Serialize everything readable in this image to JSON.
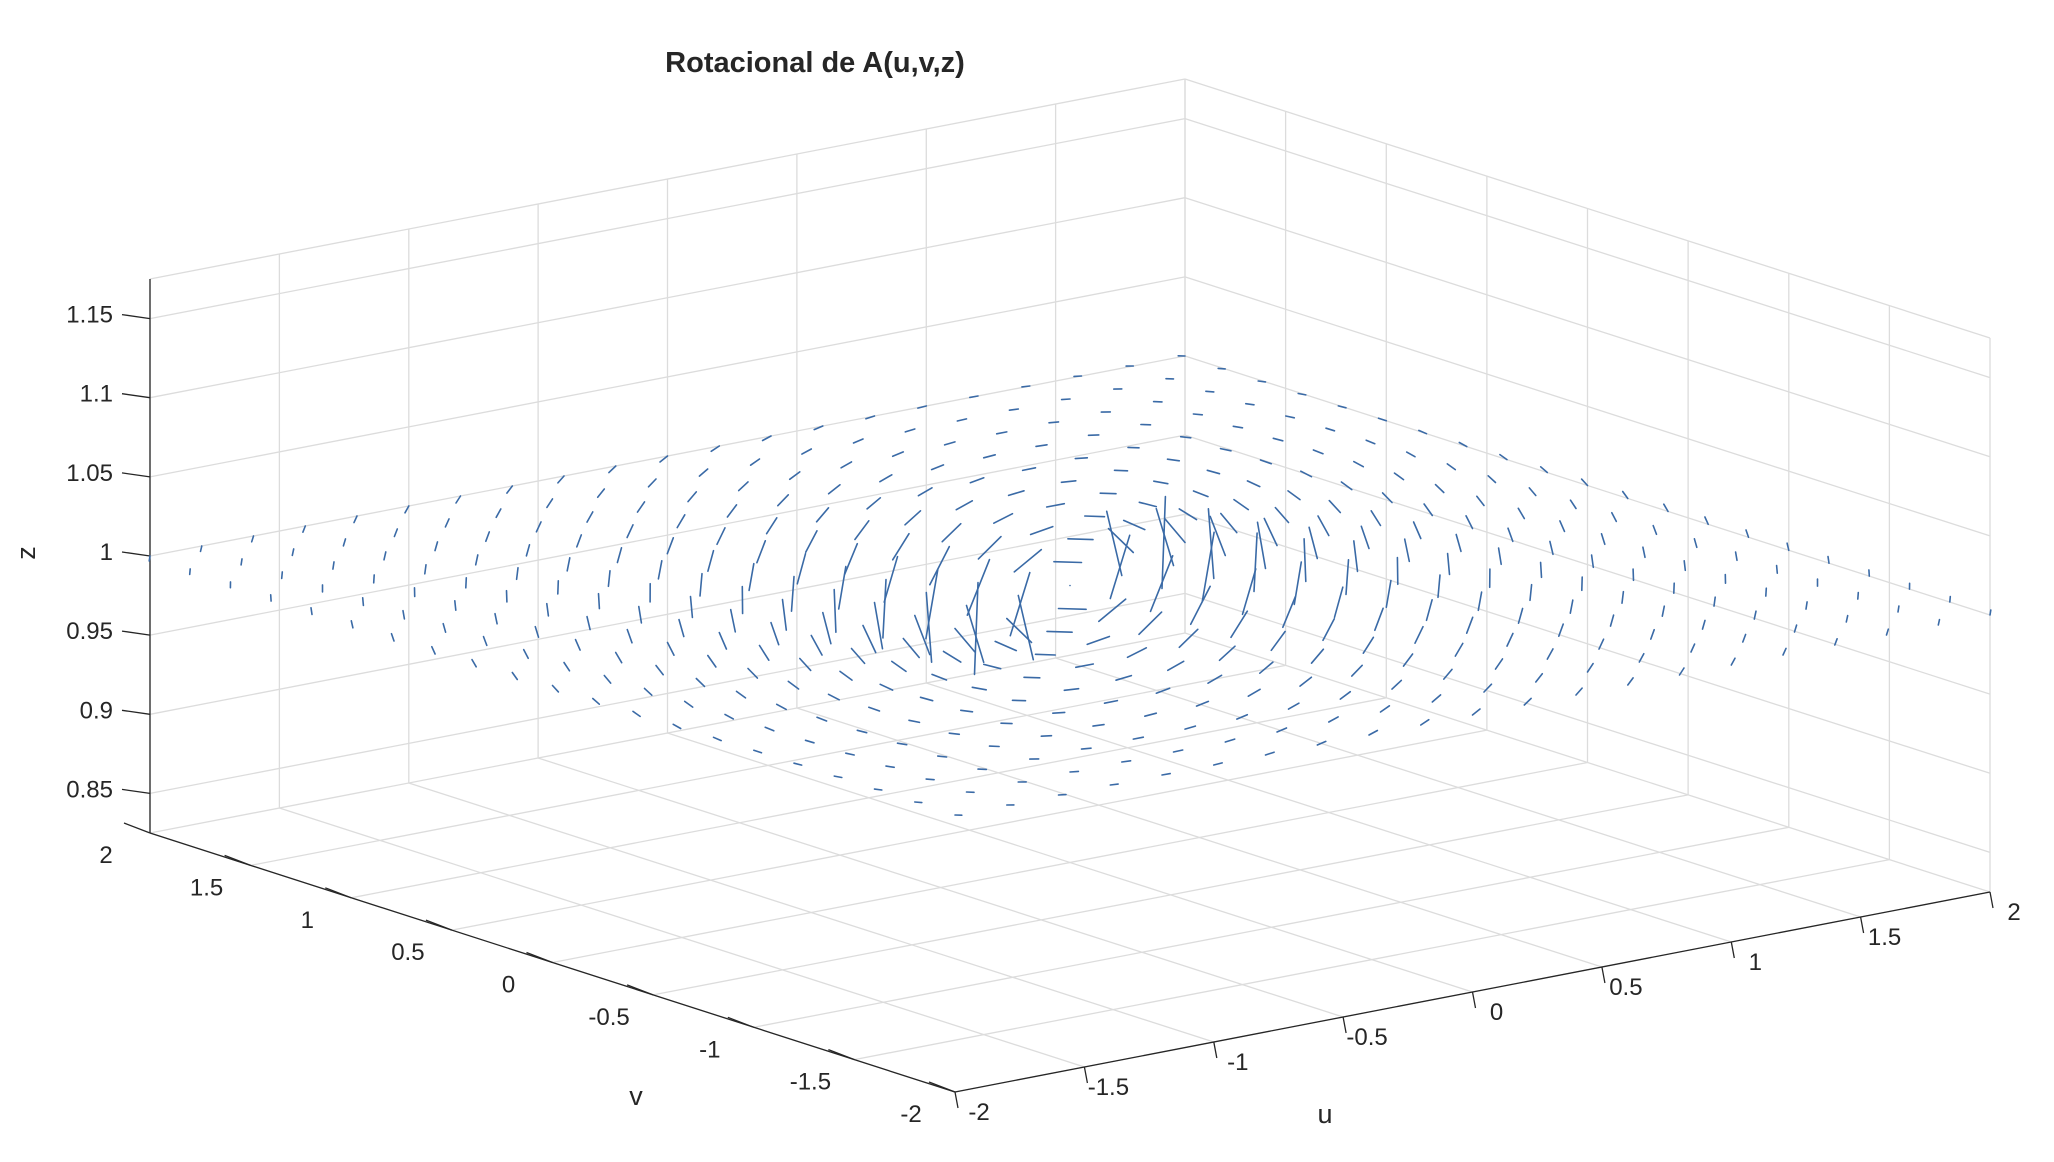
{
  "colors": {
    "arrow": "#3a6aa6",
    "grid": "#dcdcdc",
    "axis": "#262626",
    "background": "#ffffff"
  },
  "chart_data": {
    "type": "quiver3d",
    "title": "Rotacional de A(u,v,z)",
    "xlabel": "u",
    "ylabel": "v",
    "zlabel": "z",
    "xlim": [
      -2,
      2
    ],
    "ylim": [
      -2,
      2
    ],
    "zlim": [
      0.825,
      1.175
    ],
    "xticks": [
      "-2",
      "-1.5",
      "-1",
      "-0.5",
      "0",
      "0.5",
      "1",
      "1.5",
      "2"
    ],
    "yticks": [
      "-2",
      "-1.5",
      "-1",
      "-0.5",
      "0",
      "0.5",
      "1",
      "1.5",
      "2"
    ],
    "zticks": [
      "0.85",
      "0.9",
      "0.95",
      "1",
      "1.05",
      "1.1",
      "1.15"
    ],
    "grid": true,
    "field": {
      "plane_z": 1,
      "grid_u": [
        -2,
        2,
        21
      ],
      "grid_v": [
        -2,
        2,
        21
      ],
      "vector": "curl of A with components falling off as 1/(u^2+v^2)",
      "auto_scale": true
    }
  }
}
